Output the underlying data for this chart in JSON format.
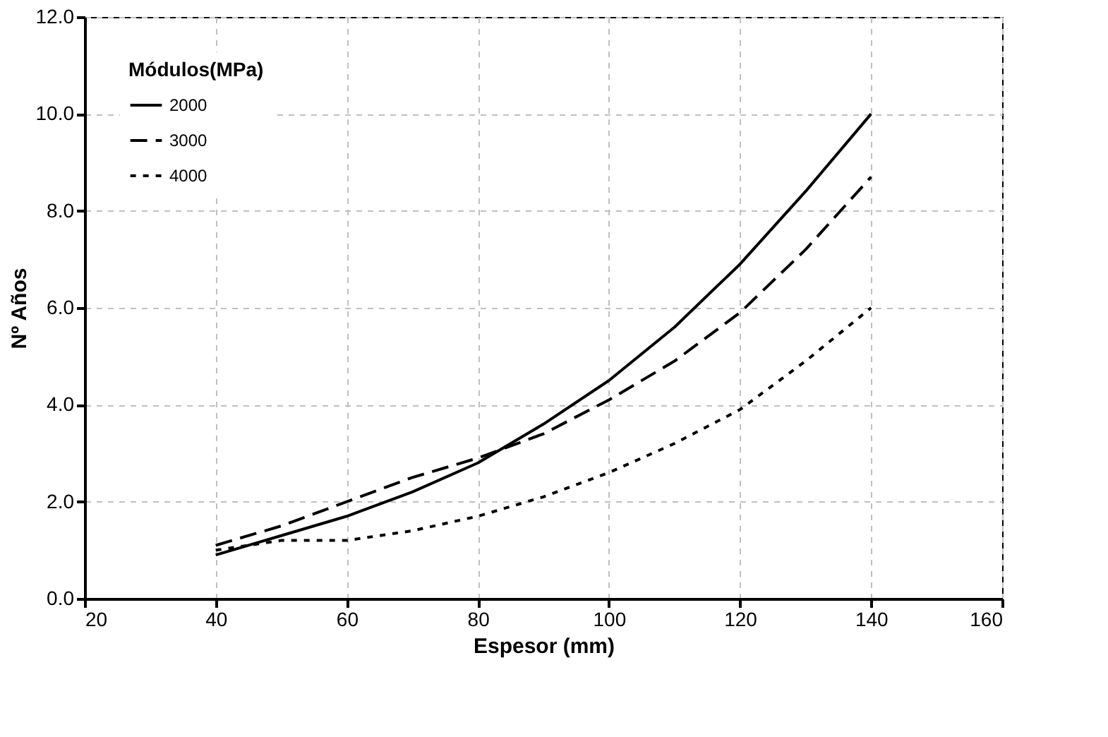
{
  "chart_data": {
    "type": "line",
    "xlabel": "Espesor (mm)",
    "ylabel": "Nº Años",
    "legend_title": "Módulos(MPa)",
    "x": [
      40,
      50,
      60,
      70,
      80,
      90,
      100,
      110,
      120,
      130,
      140
    ],
    "series": [
      {
        "name": "2000",
        "color": "#000000",
        "line_style": "solid",
        "values": [
          0.9,
          1.3,
          1.7,
          2.2,
          2.8,
          3.6,
          4.5,
          5.6,
          6.9,
          8.4,
          10.0
        ]
      },
      {
        "name": "3000",
        "color": "#000000",
        "line_style": "dashed",
        "values": [
          1.1,
          1.5,
          2.0,
          2.5,
          2.9,
          3.4,
          4.1,
          4.9,
          5.9,
          7.2,
          8.7
        ]
      },
      {
        "name": "4000",
        "color": "#000000",
        "line_style": "dotted",
        "values": [
          1.0,
          1.2,
          1.2,
          1.4,
          1.7,
          2.1,
          2.6,
          3.2,
          3.9,
          4.9,
          6.0
        ]
      }
    ],
    "xlim": [
      20,
      160
    ],
    "xticks": [
      20,
      40,
      60,
      80,
      100,
      120,
      140,
      160
    ],
    "ylim": [
      0,
      12
    ],
    "yticks": [
      {
        "value": 0,
        "label": "0.0"
      },
      {
        "value": 2,
        "label": "2.0"
      },
      {
        "value": 4,
        "label": "4.0"
      },
      {
        "value": 6,
        "label": "6.0"
      },
      {
        "value": 8,
        "label": "8.0"
      },
      {
        "value": 10,
        "label": "10.0"
      },
      {
        "value": 12,
        "label": "12.0"
      }
    ],
    "grid": true,
    "legend": "top left",
    "marker": "none"
  }
}
